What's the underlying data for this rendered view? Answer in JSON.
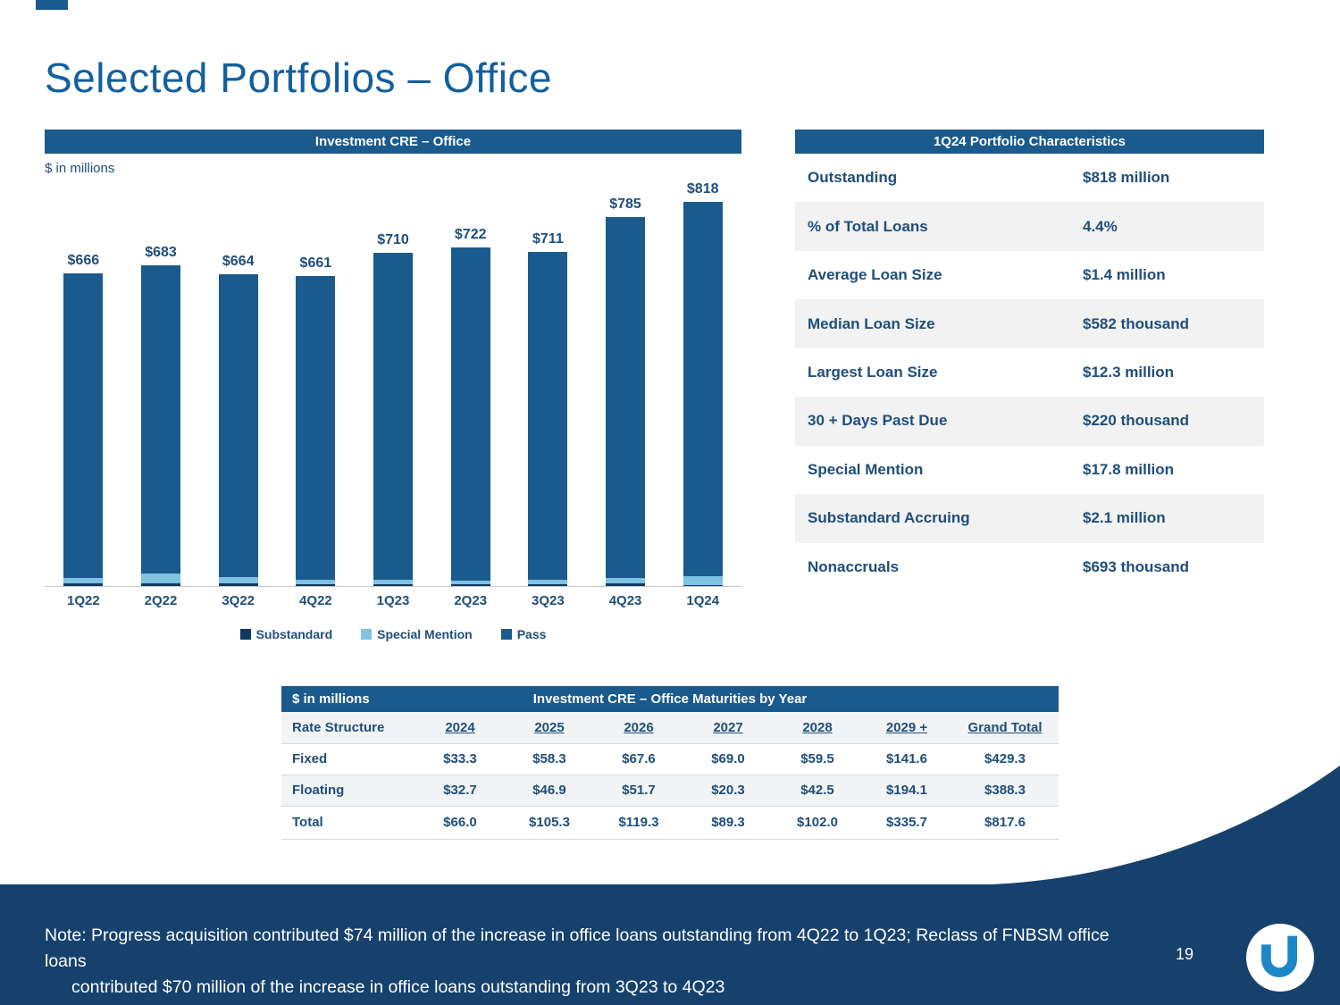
{
  "slide": {
    "title": "Selected Portfolios – Office"
  },
  "chart_data": [
    {
      "type": "bar",
      "stacked": true,
      "title": "Investment CRE – Office",
      "units": "$ in millions",
      "categories": [
        "1Q22",
        "2Q22",
        "3Q22",
        "4Q22",
        "1Q23",
        "2Q23",
        "3Q23",
        "4Q23",
        "1Q24"
      ],
      "totals": [
        666,
        683,
        664,
        661,
        710,
        722,
        711,
        785,
        818
      ],
      "total_labels": [
        "$666",
        "$683",
        "$664",
        "$661",
        "$710",
        "$722",
        "$711",
        "$785",
        "$818"
      ],
      "series": [
        {
          "name": "Substandard",
          "color": "#12395f",
          "values": [
            5,
            6,
            5,
            4,
            4,
            4,
            4,
            6,
            2
          ]
        },
        {
          "name": "Special Mention",
          "color": "#7fc2e2",
          "values": [
            13,
            20,
            14,
            10,
            9,
            8,
            9,
            11,
            18
          ]
        },
        {
          "name": "Pass",
          "color": "#1a5a8c",
          "values": [
            648,
            657,
            645,
            647,
            697,
            710,
            698,
            768,
            798
          ]
        }
      ],
      "ylim": [
        0,
        860
      ],
      "grid": false,
      "legend_position": "bottom"
    },
    {
      "type": "table",
      "title": "Investment CRE – Office Maturities by Year",
      "units_label": "$ in millions",
      "columns": [
        "Rate Structure",
        "2024",
        "2025",
        "2026",
        "2027",
        "2028",
        "2029 +",
        "Grand Total"
      ],
      "rows": [
        {
          "label": "Fixed",
          "values": [
            "$33.3",
            "$58.3",
            "$67.6",
            "$69.0",
            "$59.5",
            "$141.6",
            "$429.3"
          ],
          "bold": false
        },
        {
          "label": "Floating",
          "values": [
            "$32.7",
            "$46.9",
            "$51.7",
            "$20.3",
            "$42.5",
            "$194.1",
            "$388.3"
          ],
          "bold": false
        },
        {
          "label": "Total",
          "values": [
            "$66.0",
            "$105.3",
            "$119.3",
            "$89.3",
            "$102.0",
            "$335.7",
            "$817.6"
          ],
          "bold": true
        }
      ]
    }
  ],
  "characteristics": {
    "header": "1Q24 Portfolio Characteristics",
    "rows": [
      {
        "label": "Outstanding",
        "value": "$818 million"
      },
      {
        "label": "% of Total Loans",
        "value": "4.4%"
      },
      {
        "label": "Average Loan Size",
        "value": "$1.4 million"
      },
      {
        "label": "Median Loan Size",
        "value": "$582 thousand"
      },
      {
        "label": "Largest Loan Size",
        "value": "$12.3 million"
      },
      {
        "label": "30 + Days Past Due",
        "value": "$220 thousand"
      },
      {
        "label": "Special Mention",
        "value": "$17.8 million"
      },
      {
        "label": "Substandard Accruing",
        "value": "$2.1 million"
      },
      {
        "label": "Nonaccruals",
        "value": "$693 thousand"
      }
    ]
  },
  "footer": {
    "note_line1": "Note: Progress acquisition contributed $74 million of the increase in office loans outstanding from 4Q22 to 1Q23; Reclass of FNBSM office loans",
    "note_line2": "contributed $70 million of the increase in office loans outstanding from 3Q23 to 4Q23",
    "page_number": "19"
  },
  "colors": {
    "accent": "#1a5a8c",
    "title_blue": "#135f9e",
    "text_navy": "#1f4e79",
    "special_mention_blue": "#7fc2e2",
    "substandard_navy": "#12395f",
    "footer_navy": "#16416d",
    "row_alt_gray": "#f2f2f2",
    "logo_blue": "#1d86c8"
  }
}
